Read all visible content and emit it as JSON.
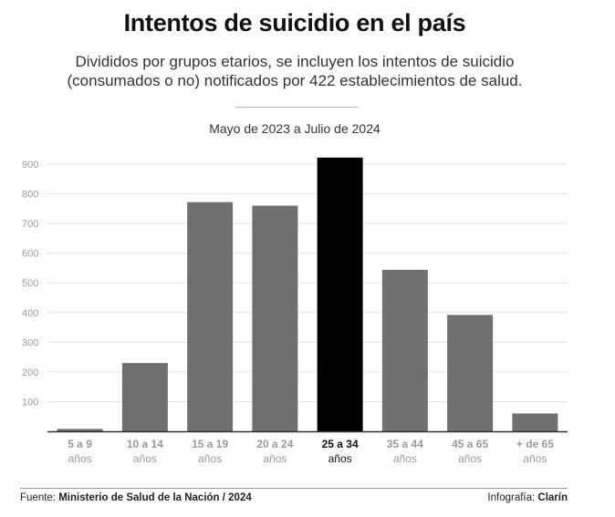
{
  "header": {
    "title": "Intentos de suicidio en el país",
    "subtitle_line1": "Divididos por grupos etarios, se incluyen los intentos de suicidio",
    "subtitle_line2": "(consumados o no) notificados por 422 establecimientos de salud.",
    "period": "Mayo de 2023 a Julio de 2024"
  },
  "footer": {
    "source_label": "Fuente:",
    "source_value": "Ministerio de Salud de la Nación / 2024",
    "credit_label": "Infografía:",
    "credit_value": "Clarín"
  },
  "chart_data": {
    "type": "bar",
    "title": "",
    "categories": [
      {
        "line1": "5 a 9",
        "line2": "años"
      },
      {
        "line1": "10 a 14",
        "line2": "años"
      },
      {
        "line1": "15 a 19",
        "line2": "años"
      },
      {
        "line1": "20 a 24",
        "line2": "años"
      },
      {
        "line1": "25 a 34",
        "line2": "años"
      },
      {
        "line1": "35 a 44",
        "line2": "años"
      },
      {
        "line1": "45 a 65",
        "line2": "años"
      },
      {
        "line1": "+ de 65",
        "line2": "años"
      }
    ],
    "values": [
      8,
      230,
      772,
      760,
      922,
      544,
      392,
      60
    ],
    "highlight_index": 4,
    "ylim": [
      0,
      900
    ],
    "yticks": [
      100,
      200,
      300,
      400,
      500,
      600,
      700,
      800,
      900
    ],
    "grid": true,
    "colors": {
      "bar": "#707070",
      "highlight": "#000000",
      "grid": "#e3e3e3",
      "axis": "#333333",
      "tick_label": "#9a9a9a",
      "highlight_label": "#111111"
    }
  }
}
